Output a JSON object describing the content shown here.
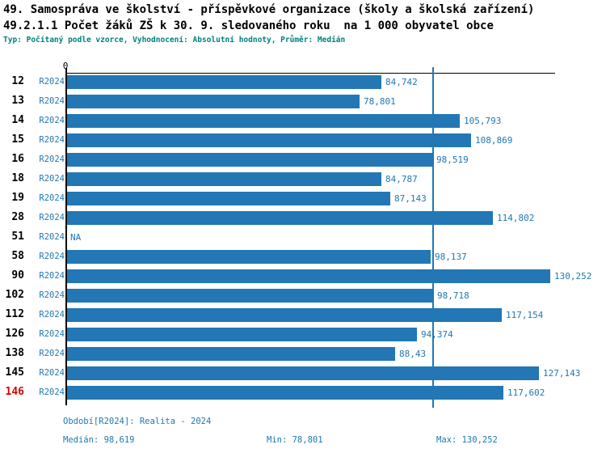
{
  "header": {
    "line1": "49. Samospráva ve školství - příspěvkové organizace (školy a školská zařízení)",
    "line2": "49.2.1.1 Počet žáků ZŠ k 30. 9. sledovaného roku  na 1 000 obyvatel obce",
    "meta": "Typ: Počítaný podle vzorce, Vyhodnocení: Absolutní hodnoty, Průměr: Medián"
  },
  "plot": {
    "zero_tick": "0"
  },
  "chart_data": {
    "type": "bar",
    "orientation": "horizontal",
    "title": "49. Samospráva ve školství - příspěvkové organizace (školy a školská zařízení)",
    "subtitle": "49.2.1.1 Počet žáků ZŠ k 30. 9. sledovaného roku  na 1 000 obyvatel obce",
    "series_label": "R2024",
    "categories": [
      "12",
      "13",
      "14",
      "15",
      "16",
      "18",
      "19",
      "28",
      "51",
      "58",
      "90",
      "102",
      "112",
      "126",
      "138",
      "145",
      "146"
    ],
    "values": [
      84.742,
      78.801,
      105.793,
      108.869,
      98.519,
      84.787,
      87.143,
      114.802,
      null,
      98.137,
      130.252,
      98.718,
      117.154,
      94.374,
      88.43,
      127.143,
      117.602
    ],
    "value_labels": [
      "84,742",
      "78,801",
      "105,793",
      "108,869",
      "98,519",
      "84,787",
      "87,143",
      "114,802",
      "NA",
      "98,137",
      "130,252",
      "98,718",
      "117,154",
      "94,374",
      "88,43",
      "127,143",
      "117,602"
    ],
    "median": 98.619,
    "min": 78.801,
    "max": 130.252,
    "xlim": [
      0,
      141
    ],
    "x_axis_zero_label": "0",
    "grid": false,
    "legend": "none",
    "highlight_category": "146",
    "na_text": "NA"
  },
  "footer": {
    "period": "Období[R2024]: Realita - 2024",
    "median": "Medián: 98,619",
    "min": "Min: 78,801",
    "max": "Max: 130,252"
  },
  "colors": {
    "bar": "#2277B4",
    "accent_text": "#1F77B4",
    "median_line": "#1F77B4",
    "meta_text": "#008080",
    "highlight_text": "#D60000",
    "axis": "#000000"
  }
}
